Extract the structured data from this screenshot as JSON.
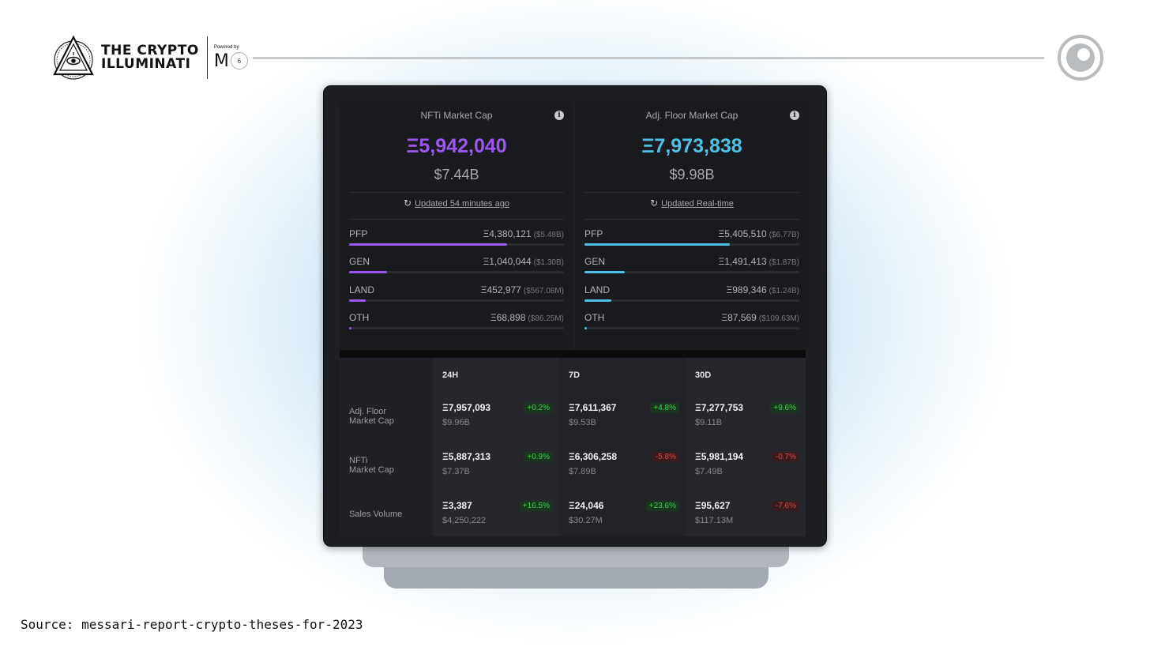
{
  "brand": {
    "name_line1": "THE CRYPTO",
    "name_line2": "ILLUMINATI",
    "powered_by": "Powered by",
    "powered_logo": "M",
    "powered_badge": "6"
  },
  "nfti": {
    "title": "NFTi Market Cap",
    "eth_value": "Ξ5,942,040",
    "usd_value": "$7.44B",
    "updated_text": "Updated 54 minutes ago",
    "accent_color": "#9b57f0",
    "categories": [
      {
        "name": "PFP",
        "eth": "Ξ4,380,121",
        "usd": "($5.48B)",
        "share": 0.737
      },
      {
        "name": "GEN",
        "eth": "Ξ1,040,044",
        "usd": "($1.30B)",
        "share": 0.175
      },
      {
        "name": "LAND",
        "eth": "Ξ452,977",
        "usd": "($567.08M)",
        "share": 0.076
      },
      {
        "name": "OTH",
        "eth": "Ξ68,898",
        "usd": "($86.25M)",
        "share": 0.012
      }
    ]
  },
  "floor": {
    "title": "Adj. Floor Market Cap",
    "eth_value": "Ξ7,973,838",
    "usd_value": "$9.98B",
    "updated_text": "Updated Real-time",
    "accent_color": "#4ec2e4",
    "categories": [
      {
        "name": "PFP",
        "eth": "Ξ5,405,510",
        "usd": "($6.77B)",
        "share": 0.678
      },
      {
        "name": "GEN",
        "eth": "Ξ1,491,413",
        "usd": "($1.87B)",
        "share": 0.187
      },
      {
        "name": "LAND",
        "eth": "Ξ989,346",
        "usd": "($1.24B)",
        "share": 0.124
      },
      {
        "name": "OTH",
        "eth": "Ξ87,569",
        "usd": "($109.63M)",
        "share": 0.011
      }
    ]
  },
  "table": {
    "columns": [
      "24H",
      "7D",
      "30D"
    ],
    "rows": [
      {
        "label_line1": "Adj. Floor",
        "label_line2": "Market Cap",
        "cells": [
          {
            "eth": "Ξ7,957,093",
            "usd": "$9.96B",
            "change": "+0.2%",
            "dir": "up"
          },
          {
            "eth": "Ξ7,611,367",
            "usd": "$9.53B",
            "change": "+4.8%",
            "dir": "up"
          },
          {
            "eth": "Ξ7,277,753",
            "usd": "$9.11B",
            "change": "+9.6%",
            "dir": "up"
          }
        ]
      },
      {
        "label_line1": "NFTi",
        "label_line2": "Market Cap",
        "cells": [
          {
            "eth": "Ξ5,887,313",
            "usd": "$7.37B",
            "change": "+0.9%",
            "dir": "up"
          },
          {
            "eth": "Ξ6,306,258",
            "usd": "$7.89B",
            "change": "-5.8%",
            "dir": "down"
          },
          {
            "eth": "Ξ5,981,194",
            "usd": "$7.49B",
            "change": "-0.7%",
            "dir": "down"
          }
        ]
      },
      {
        "label_line1": "Sales Volume",
        "label_line2": "",
        "cells": [
          {
            "eth": "Ξ3,387",
            "usd": "$4,250,222",
            "change": "+16.5%",
            "dir": "up"
          },
          {
            "eth": "Ξ24,046",
            "usd": "$30.27M",
            "change": "+23.6%",
            "dir": "up"
          },
          {
            "eth": "Ξ95,627",
            "usd": "$117.13M",
            "change": "-7.6%",
            "dir": "down"
          }
        ]
      }
    ]
  },
  "source_text": "Source: messari-report-crypto-theses-for-2023"
}
